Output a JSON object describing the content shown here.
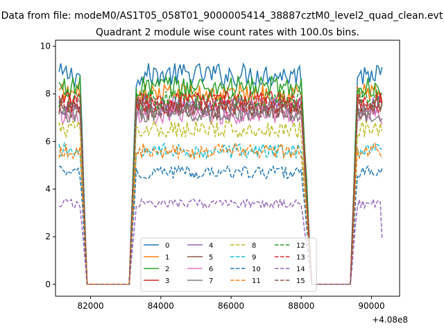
{
  "chart_data": {
    "type": "line",
    "suptitle": "Data from file: modeM0/AS1T05_058T01_9000005414_38887cztM0_level2_quad_clean.evt",
    "title": "Quadrant 2 module wise count rates with 100.0s bins.",
    "xlabel": "",
    "ylabel": "",
    "x_offset_label": "+4.08e8",
    "xlim": [
      81000,
      90800
    ],
    "ylim": [
      -0.5,
      10.25
    ],
    "xticks": [
      82000,
      84000,
      86000,
      88000,
      90000
    ],
    "yticks": [
      0,
      2,
      4,
      6,
      8,
      10
    ],
    "grid": false,
    "legend": {
      "placement": "lower center",
      "ncol": 4
    },
    "x_start": 81100,
    "x_step": 100,
    "series": [
      {
        "name": "0",
        "color": "#1f77b4",
        "dash": "solid",
        "level": 8.8
      },
      {
        "name": "1",
        "color": "#ff7f0e",
        "dash": "solid",
        "level": 8.0
      },
      {
        "name": "2",
        "color": "#2ca02c",
        "dash": "solid",
        "level": 8.3
      },
      {
        "name": "3",
        "color": "#d62728",
        "dash": "solid",
        "level": 7.7
      },
      {
        "name": "4",
        "color": "#9467bd",
        "dash": "solid",
        "level": 7.5
      },
      {
        "name": "5",
        "color": "#8c564b",
        "dash": "solid",
        "level": 7.3
      },
      {
        "name": "6",
        "color": "#e377c2",
        "dash": "solid",
        "level": 7.1
      },
      {
        "name": "7",
        "color": "#7f7f7f",
        "dash": "solid",
        "level": 7.2
      },
      {
        "name": "8",
        "color": "#bcbd22",
        "dash": "dashed",
        "level": 6.5
      },
      {
        "name": "9",
        "color": "#17becf",
        "dash": "dashed",
        "level": 5.6
      },
      {
        "name": "10",
        "color": "#1f77b4",
        "dash": "dashed",
        "level": 4.7
      },
      {
        "name": "11",
        "color": "#ff7f0e",
        "dash": "dashed",
        "level": 5.6
      },
      {
        "name": "12",
        "color": "#2ca02c",
        "dash": "dashed",
        "level": 7.8
      },
      {
        "name": "13",
        "color": "#d62728",
        "dash": "dashed",
        "level": 7.6
      },
      {
        "name": "14",
        "color": "#9467bd",
        "dash": "dashed",
        "level": 3.4
      },
      {
        "name": "15",
        "color": "#8c564b",
        "dash": "dashed",
        "level": 7.4
      }
    ],
    "segments": [
      {
        "x_from": 81100,
        "x_to": 81700,
        "state": "on"
      },
      {
        "x_from": 81700,
        "x_to": 81900,
        "state": "drop"
      },
      {
        "x_from": 81900,
        "x_to": 83100,
        "state": "off"
      },
      {
        "x_from": 83100,
        "x_to": 83300,
        "state": "rise"
      },
      {
        "x_from": 83300,
        "x_to": 88000,
        "state": "on"
      },
      {
        "x_from": 88000,
        "x_to": 88300,
        "state": "drop"
      },
      {
        "x_from": 88300,
        "x_to": 89400,
        "state": "off"
      },
      {
        "x_from": 89400,
        "x_to": 89600,
        "state": "rise"
      },
      {
        "x_from": 89600,
        "x_to": 90300,
        "state": "on"
      }
    ]
  }
}
